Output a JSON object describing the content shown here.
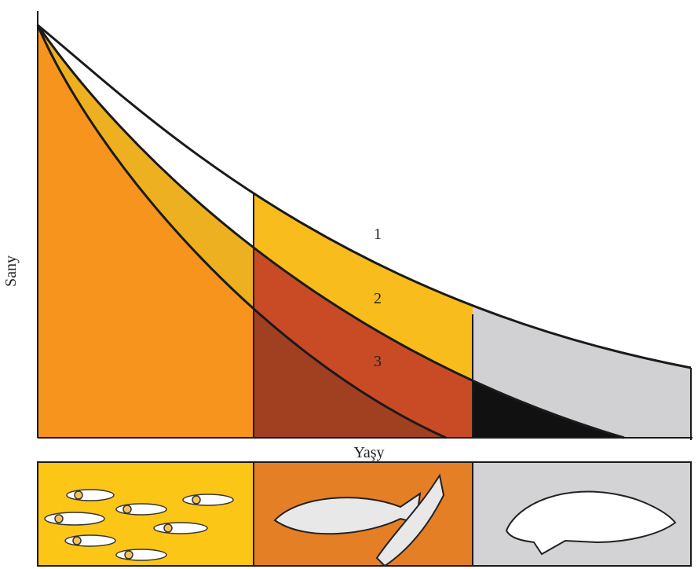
{
  "axes": {
    "y_label": "Sany",
    "x_label": "Yaşy"
  },
  "curves": [
    {
      "label": "1"
    },
    {
      "label": "2"
    },
    {
      "label": "3"
    }
  ]
}
